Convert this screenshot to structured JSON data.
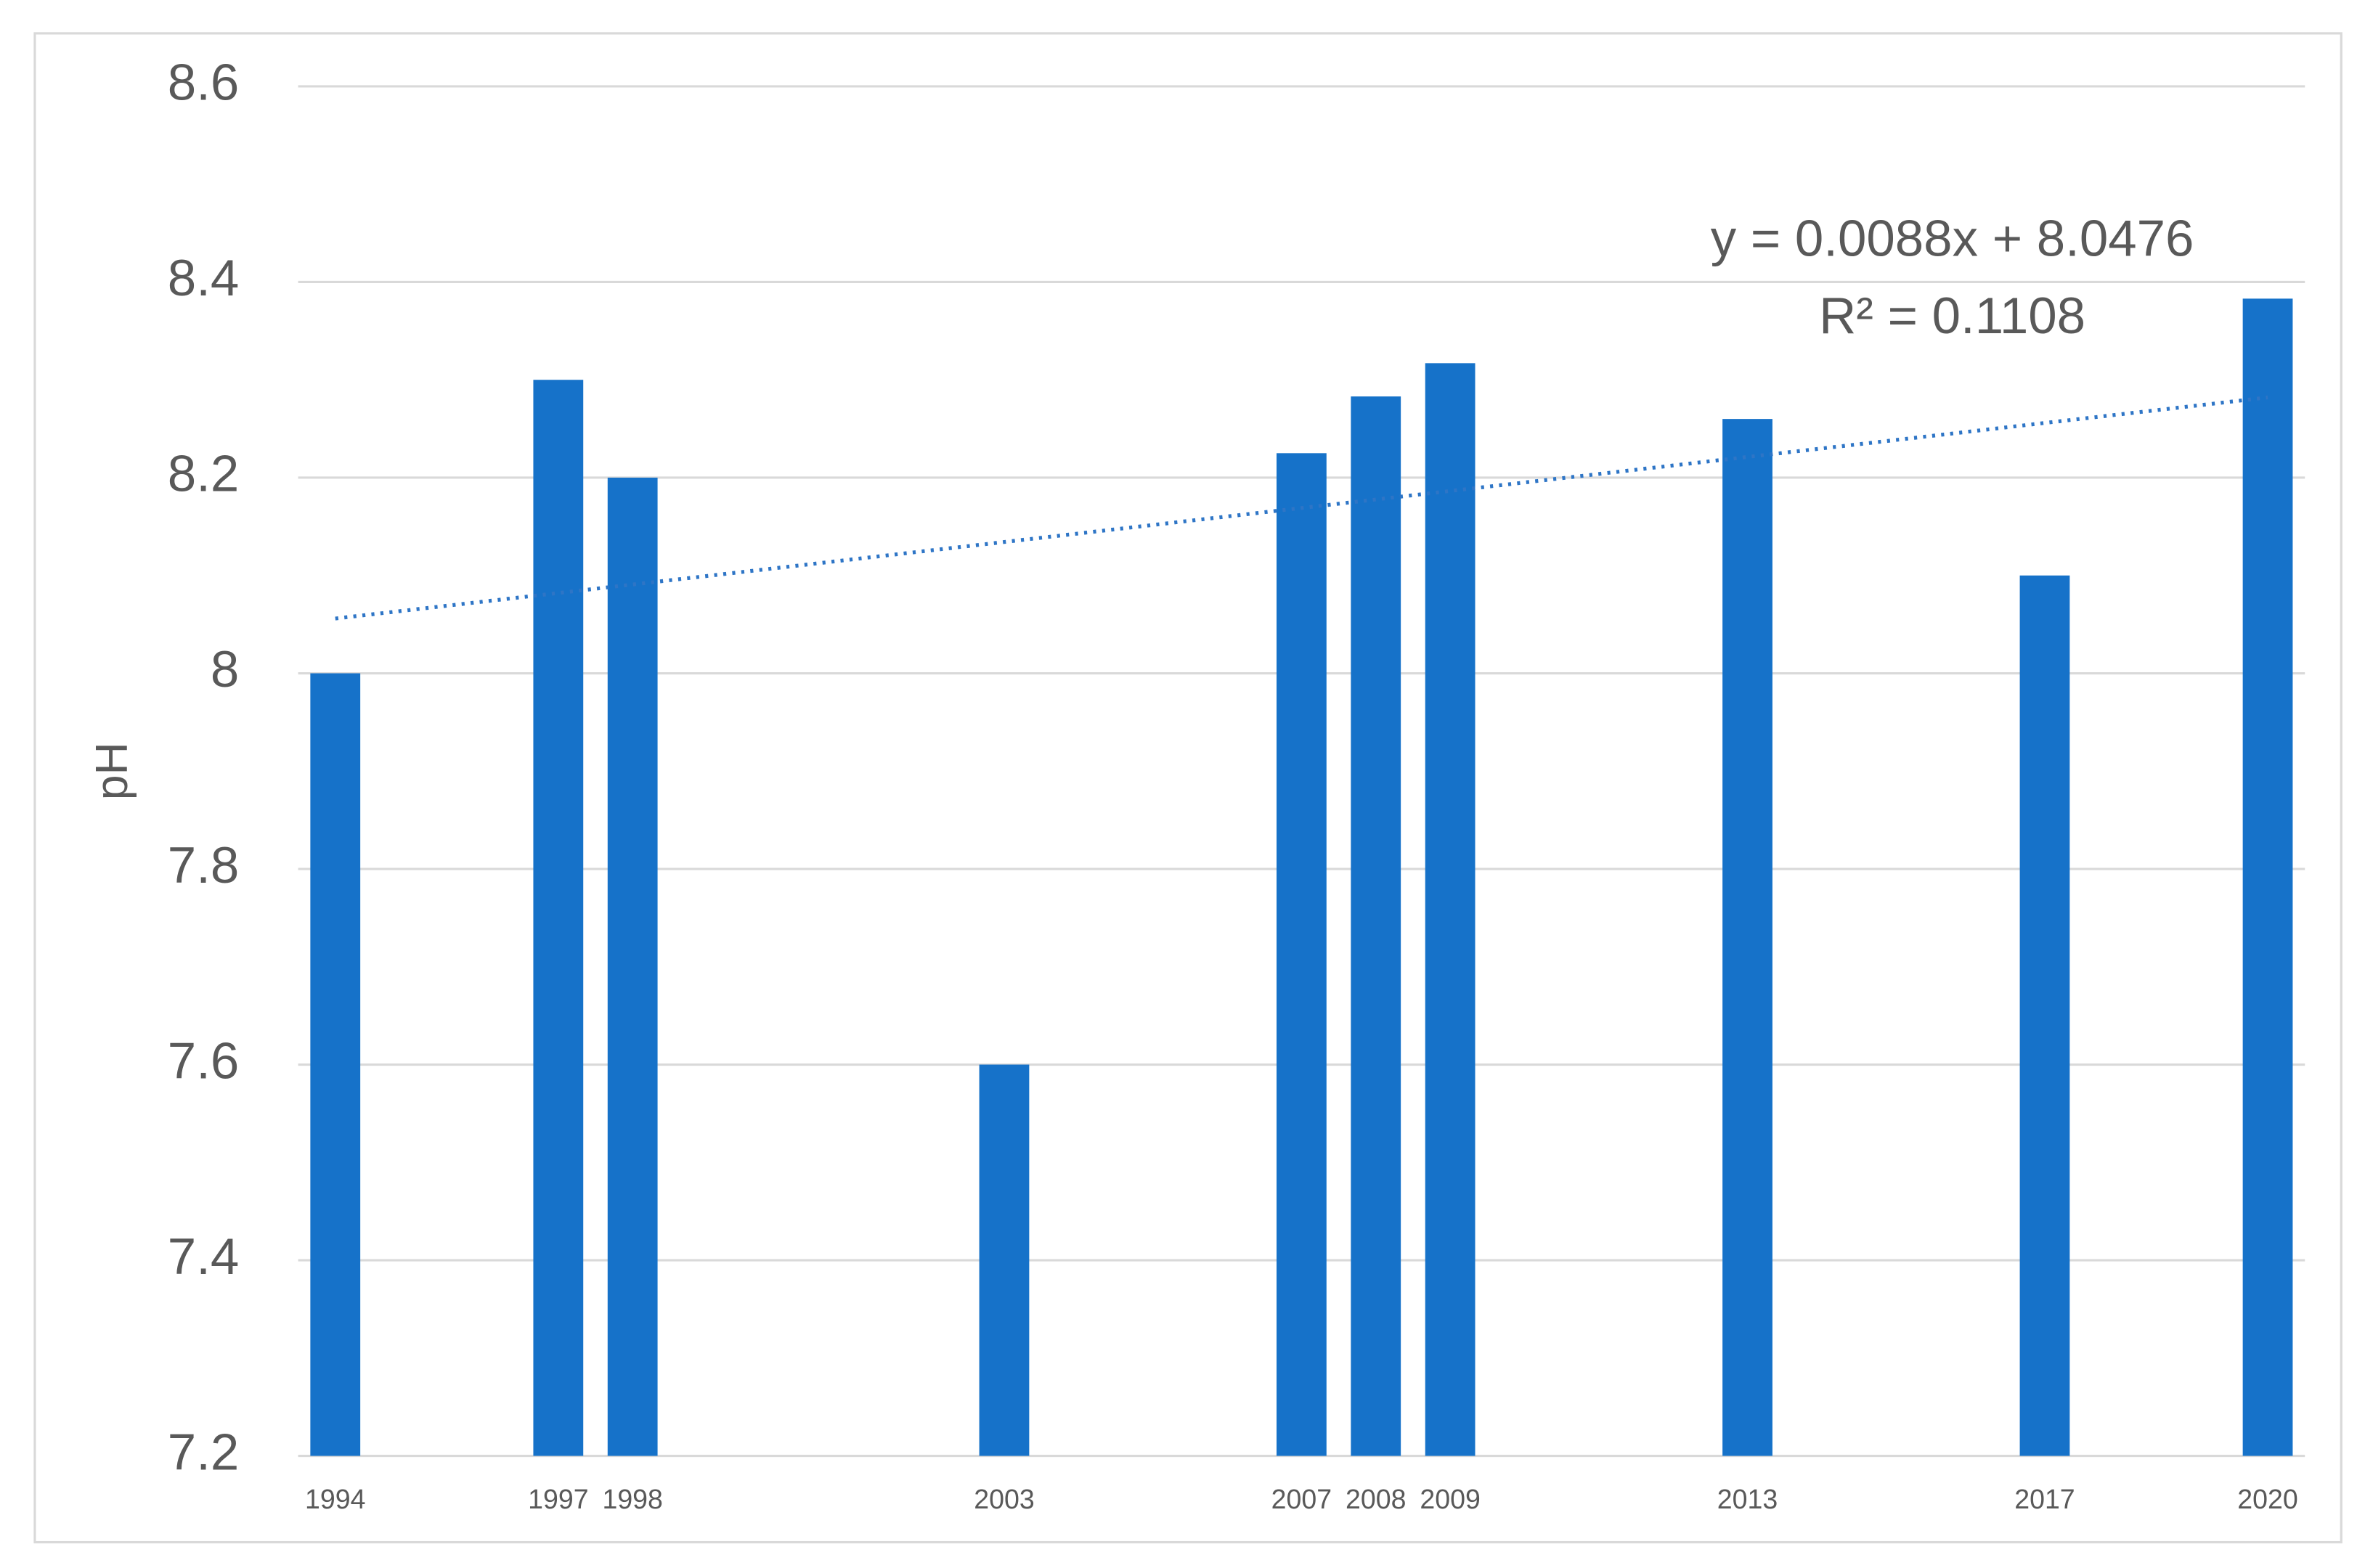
{
  "chart_data": {
    "type": "bar",
    "y_label": "pH",
    "x": [
      1994,
      1997,
      1998,
      2003,
      2007,
      2008,
      2009,
      2013,
      2017,
      2020
    ],
    "values": [
      8.0,
      8.3,
      8.2,
      7.6,
      8.225,
      8.283,
      8.317,
      8.26,
      8.1,
      8.383
    ],
    "color": "#1672c9",
    "xlim": [
      1993.5,
      2020.5
    ],
    "ylim": [
      7.2,
      8.6
    ],
    "yticks": [
      7.2,
      7.4,
      7.6,
      7.8,
      8,
      8.2,
      8.4,
      8.6
    ],
    "grid": true,
    "trendline": {
      "x": [
        1994,
        2020
      ],
      "values": [
        8.056,
        8.282
      ],
      "color": "#2e75c6"
    },
    "annotations": [
      "y = 0.0088x + 8.0476",
      "R² = 0.1108"
    ]
  }
}
